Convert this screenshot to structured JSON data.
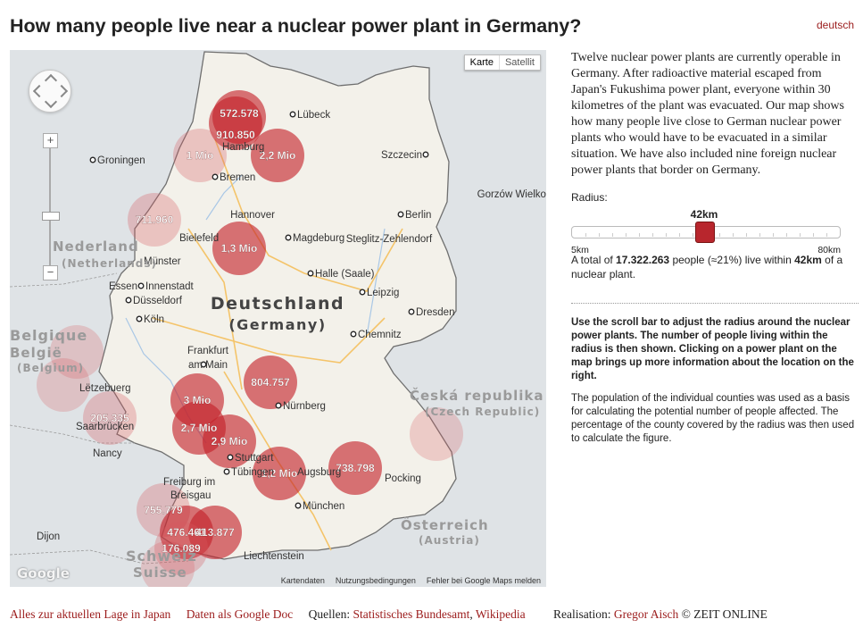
{
  "title": "How many people live near a nuclear power plant in Germany?",
  "language_link": "deutsch",
  "map": {
    "type_buttons": [
      "Karte",
      "Satellit"
    ],
    "country_label": "Deutschland",
    "country_label_en": "(Germany)",
    "neighbor_labels": [
      {
        "id": "nl",
        "text": "Nederland"
      },
      {
        "id": "nl2",
        "text": "(Netherlands)"
      },
      {
        "id": "be",
        "text": "Belgique"
      },
      {
        "id": "be2",
        "text": "België"
      },
      {
        "id": "be3",
        "text": "(Belgium)"
      },
      {
        "id": "cz",
        "text": "Česká republika"
      },
      {
        "id": "cz2",
        "text": "(Czech Republic)"
      },
      {
        "id": "at",
        "text": "Österreich"
      },
      {
        "id": "at2",
        "text": "(Austria)"
      },
      {
        "id": "ch",
        "text": "Schweiz"
      },
      {
        "id": "ch2",
        "text": "Suisse"
      }
    ],
    "cities": [
      {
        "id": "luebeck",
        "text": "Lübeck"
      },
      {
        "id": "hamburg",
        "text": "Hamburg"
      },
      {
        "id": "szczecin",
        "text": "Szczecin"
      },
      {
        "id": "groningen",
        "text": "Groningen"
      },
      {
        "id": "bremen",
        "text": "Bremen"
      },
      {
        "id": "gorzow",
        "text": "Gorzów Wielkopolski"
      },
      {
        "id": "hannover",
        "text": "Hannover"
      },
      {
        "id": "berlin",
        "text": "Berlin"
      },
      {
        "id": "bielefeld",
        "text": "Bielefeld"
      },
      {
        "id": "magdeburg",
        "text": "Magdeburg"
      },
      {
        "id": "steglitz",
        "text": "Steglitz-Zehlendorf"
      },
      {
        "id": "muenster",
        "text": "Münster"
      },
      {
        "id": "halle",
        "text": "Halle (Saale)"
      },
      {
        "id": "essen",
        "text": "Essen"
      },
      {
        "id": "innenstadt",
        "text": "Innenstadt"
      },
      {
        "id": "leipzig",
        "text": "Leipzig"
      },
      {
        "id": "duesseldorf",
        "text": "Düsseldorf"
      },
      {
        "id": "dresden",
        "text": "Dresden"
      },
      {
        "id": "koeln",
        "text": "Köln"
      },
      {
        "id": "chemnitz",
        "text": "Chemnitz"
      },
      {
        "id": "frankfurt",
        "text": "Frankfurt"
      },
      {
        "id": "frankfurt2",
        "text": "am Main"
      },
      {
        "id": "letzebuerg",
        "text": "Lëtzebuerg"
      },
      {
        "id": "nuernberg",
        "text": "Nürnberg"
      },
      {
        "id": "saarbruecken",
        "text": "Saarbrücken"
      },
      {
        "id": "nancy",
        "text": "Nancy"
      },
      {
        "id": "stuttgart",
        "text": "Stuttgart"
      },
      {
        "id": "tuebingen",
        "text": "Tübingen"
      },
      {
        "id": "augsburg",
        "text": "Augsburg"
      },
      {
        "id": "pocking",
        "text": "Pocking"
      },
      {
        "id": "freiburg",
        "text": "Freiburg im"
      },
      {
        "id": "breisgau",
        "text": "Breisgau"
      },
      {
        "id": "muenchen",
        "text": "München"
      },
      {
        "id": "dijon",
        "text": "Dijon"
      },
      {
        "id": "liechtenstein",
        "text": "Liechtenstein"
      }
    ],
    "plants": [
      {
        "id": "brunsbuettel",
        "label": "572.578"
      },
      {
        "id": "kruemmel",
        "label": "910.850"
      },
      {
        "id": "unterweser",
        "label": "1 Mio"
      },
      {
        "id": "brokdorf",
        "label": "2,2 Mio"
      },
      {
        "id": "lingen",
        "label": "711.960"
      },
      {
        "id": "grohnde",
        "label": "1,3 Mio"
      },
      {
        "id": "grafenrheinfeld",
        "label": "804.757"
      },
      {
        "id": "biblis",
        "label": "3 Mio"
      },
      {
        "id": "cattenom",
        "label": "205.335"
      },
      {
        "id": "philippsburg",
        "label": "2,7 Mio"
      },
      {
        "id": "neckarwestheim",
        "label": "2,9 Mio"
      },
      {
        "id": "gundremmingen",
        "label": "1,2 Mio"
      },
      {
        "id": "isar",
        "label": "738.798"
      },
      {
        "id": "fessenheim",
        "label": "755.779"
      },
      {
        "id": "beznau",
        "label": "476.461"
      },
      {
        "id": "leibstadt",
        "label": "413.877"
      },
      {
        "id": "goesgen",
        "label": "176.089"
      }
    ],
    "google_logo": "Google",
    "attribution": [
      "Kartendaten",
      "Nutzungsbedingungen",
      "Fehler bei Google Maps melden"
    ]
  },
  "sidebar": {
    "intro": "Twelve nuclear power plants are currently operable in Germany. After radioactive material escaped from Japan's Fukushima power plant, everyone within 30 kilometres of the plant was evacuated. Our map shows how many people live close to German nuclear power plants who would have to be evacuated in a similar situation. We have also included nine foreign nuclear power plants that border on Germany.",
    "radius_label": "Radius:",
    "slider": {
      "value_label": "42km",
      "min_label": "5km",
      "max_label": "80km",
      "min": 5,
      "max": 80,
      "value": 42
    },
    "total": {
      "prefix": "A total of ",
      "count": "17.322.263",
      "middle": " people (≈21%) live within ",
      "radius": "42km",
      "suffix": " of a nuclear plant."
    },
    "instructions": "Use the scroll bar to adjust the radius around the nuclear power plants. The number of people living within the radius is then shown. Clicking on a power plant on the map brings up more information about the location on the right.",
    "methodology": "The population of the individual counties was used as a basis for calculating the potential number of people affected. The percentage of the county covered by the radius was then used to calculate the figure."
  },
  "footer": {
    "link1": "Alles zur aktuellen Lage in Japan",
    "link2": "Daten als Google Doc",
    "sources_label": "Quellen: ",
    "source1": "Statistisches Bundesamt",
    "sep": ", ",
    "source2": "Wikipedia",
    "credit_label": "Realisation: ",
    "author": "Gregor Aisch",
    "copyright": " © ZEIT ONLINE"
  },
  "colors": {
    "accent": "#9b1b1b",
    "circle": "#c8262d",
    "country": "#f2f0ea",
    "outside": "#dfe3e6"
  }
}
